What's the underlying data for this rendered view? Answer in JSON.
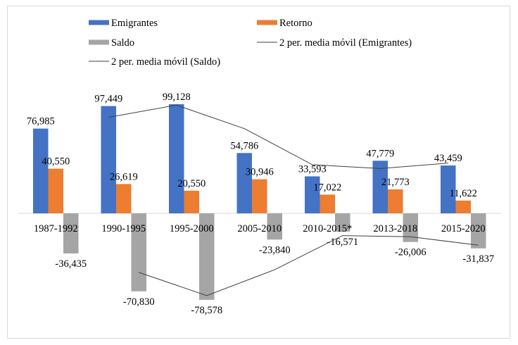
{
  "chart_data": {
    "type": "bar",
    "categories": [
      "1987-1992",
      "1990-1995",
      "1995-2000",
      "2005-2010",
      "2010-2015*",
      "2013-2018",
      "2015-2020"
    ],
    "series": [
      {
        "name": "Emigrantes",
        "color": "#4472C4",
        "values": [
          76985,
          97449,
          99128,
          54786,
          33593,
          47779,
          43459
        ],
        "labels": [
          "76,985",
          "97,449",
          "99,128",
          "54,786",
          "33,593",
          "47,779",
          "43,459"
        ]
      },
      {
        "name": "Retorno",
        "color": "#ED7D31",
        "values": [
          40550,
          26619,
          20550,
          30946,
          17022,
          21773,
          11622
        ],
        "labels": [
          "40,550",
          "26,619",
          "20,550",
          "30,946",
          "17,022",
          "21,773",
          "11,622"
        ]
      },
      {
        "name": "Saldo",
        "color": "#A5A5A5",
        "values": [
          -36435,
          -70830,
          -78578,
          -23840,
          -16571,
          -26006,
          -31837
        ],
        "labels": [
          "-36,435",
          "-70,830",
          "-78,578",
          "-23,840",
          "-16,571",
          "-26,006",
          "-31,837"
        ]
      }
    ],
    "trendlines": [
      {
        "name": "2 per. media móvil (Emigrantes)",
        "type": "moving-average",
        "period": 2,
        "of": "Emigrantes",
        "color": "#404040"
      },
      {
        "name": "2 per. media móvil (Saldo)",
        "type": "moving-average",
        "period": 2,
        "of": "Saldo",
        "color": "#404040"
      }
    ],
    "legend_placement": "top",
    "grid": false,
    "y_axis_visible": false
  }
}
